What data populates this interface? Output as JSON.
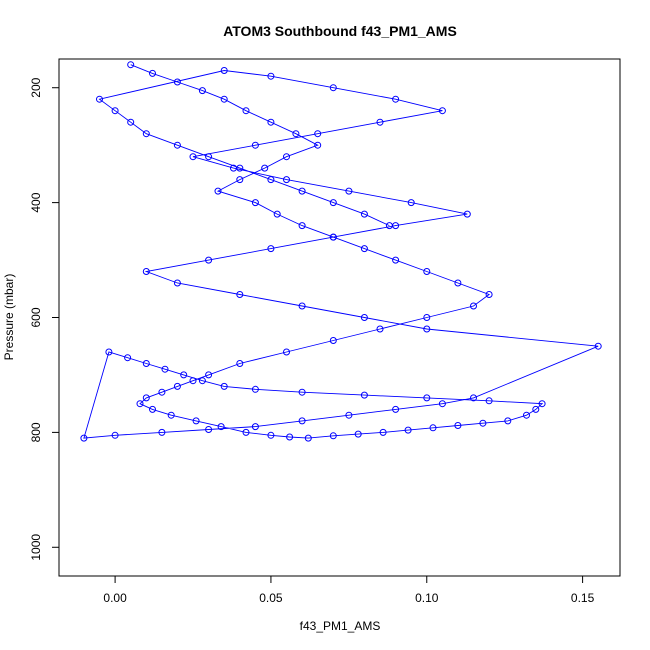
{
  "chart_data": {
    "type": "scatter",
    "title": "ATOM3 Southbound f43_PM1_AMS",
    "xlabel": "f43_PM1_AMS",
    "ylabel": "Pressure (mbar)",
    "xlim": [
      -0.018,
      0.162
    ],
    "ylim": [
      1050,
      150
    ],
    "y_reversed": true,
    "x_ticks": [
      {
        "value": 0.0,
        "label": "0.00"
      },
      {
        "value": 0.05,
        "label": "0.05"
      },
      {
        "value": 0.1,
        "label": "0.10"
      },
      {
        "value": 0.15,
        "label": "0.15"
      }
    ],
    "y_ticks": [
      {
        "value": 200,
        "label": "200"
      },
      {
        "value": 400,
        "label": "400"
      },
      {
        "value": 600,
        "label": "600"
      },
      {
        "value": 800,
        "label": "800"
      },
      {
        "value": 1000,
        "label": "1000"
      }
    ],
    "grid": false,
    "legend": "none",
    "markers": "open-circle",
    "connected": true,
    "colors": {
      "series": "#0000ff",
      "axis": "#000000",
      "background": "#ffffff"
    },
    "series": [
      {
        "x": [
          0.005,
          0.012,
          0.02,
          0.028,
          0.035,
          0.042,
          0.05,
          0.058,
          0.065,
          0.055,
          0.048,
          0.04,
          0.033,
          0.045,
          0.052,
          0.06,
          0.07,
          0.08,
          0.09,
          0.1,
          0.11,
          0.12,
          0.115,
          0.1,
          0.085,
          0.07,
          0.055,
          0.04,
          0.03,
          0.025,
          0.02,
          0.015,
          0.01,
          0.008,
          0.012,
          0.018,
          0.026,
          0.034,
          0.042,
          0.05,
          0.056,
          0.062,
          0.07,
          0.078,
          0.086,
          0.094,
          0.102,
          0.11,
          0.118,
          0.126,
          0.132,
          0.135,
          0.137,
          0.12,
          0.1,
          0.08,
          0.06,
          0.045,
          0.035,
          0.028,
          0.022,
          0.016,
          0.01,
          0.004,
          -0.002,
          -0.01,
          0.0,
          0.015,
          0.03,
          0.045,
          0.06,
          0.075,
          0.09,
          0.105,
          0.115,
          0.155,
          0.1,
          0.08,
          0.06,
          0.04,
          0.02,
          0.01,
          0.03,
          0.05,
          0.07,
          0.09,
          0.113,
          0.095,
          0.075,
          0.055,
          0.038,
          0.025,
          0.045,
          0.065,
          0.085,
          0.105,
          0.09,
          0.07,
          0.05,
          0.035,
          -0.005,
          0.0,
          0.005,
          0.01,
          0.02,
          0.03,
          0.04,
          0.05,
          0.06,
          0.07,
          0.08,
          0.088
        ],
        "y": [
          160,
          175,
          190,
          205,
          220,
          240,
          260,
          280,
          300,
          320,
          340,
          360,
          380,
          400,
          420,
          440,
          460,
          480,
          500,
          520,
          540,
          560,
          580,
          600,
          620,
          640,
          660,
          680,
          700,
          710,
          720,
          730,
          740,
          750,
          760,
          770,
          780,
          790,
          800,
          805,
          808,
          810,
          806,
          803,
          800,
          796,
          792,
          788,
          784,
          780,
          770,
          760,
          750,
          745,
          740,
          735,
          730,
          725,
          720,
          710,
          700,
          690,
          680,
          670,
          660,
          810,
          805,
          800,
          795,
          790,
          780,
          770,
          760,
          750,
          740,
          650,
          620,
          600,
          580,
          560,
          540,
          520,
          500,
          480,
          460,
          440,
          420,
          400,
          380,
          360,
          340,
          320,
          300,
          280,
          260,
          240,
          220,
          200,
          180,
          170,
          220,
          240,
          260,
          280,
          300,
          320,
          340,
          360,
          380,
          400,
          420,
          440
        ]
      }
    ]
  }
}
